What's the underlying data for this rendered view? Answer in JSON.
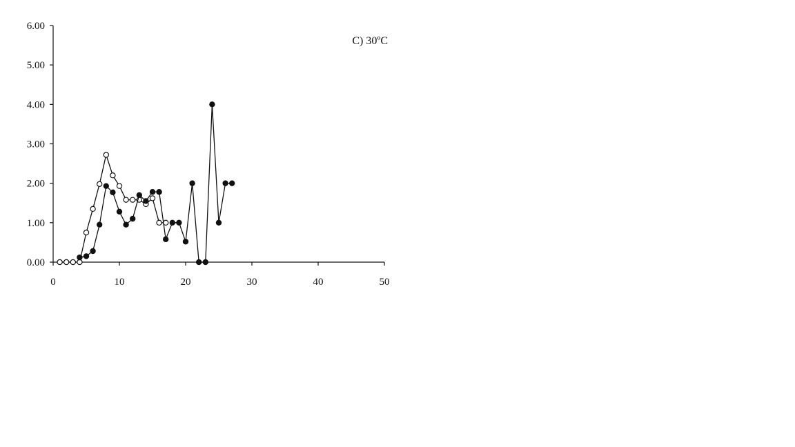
{
  "chart_data": {
    "type": "line",
    "title": "",
    "annotation": "C) 30ºC",
    "xlabel": "",
    "ylabel": "",
    "xlim": [
      0,
      50
    ],
    "ylim": [
      0,
      6
    ],
    "x_ticks": [
      0,
      10,
      20,
      30,
      40,
      50
    ],
    "x_tick_labels": [
      "0",
      "10",
      "20",
      "30",
      "40",
      "50"
    ],
    "y_ticks": [
      0,
      1,
      2,
      3,
      4,
      5,
      6
    ],
    "y_tick_labels": [
      "0.00",
      "1.00",
      "2.00",
      "3.00",
      "4.00",
      "5.00",
      "6.00"
    ],
    "grid": false,
    "legend": "none",
    "series": [
      {
        "marker": "open-circle",
        "color": "#111111",
        "x": [
          1,
          2,
          3,
          4,
          5,
          6,
          7,
          8,
          9,
          10,
          11,
          12,
          13,
          14,
          15,
          16,
          17
        ],
        "y": [
          0.0,
          0.0,
          0.0,
          0.0,
          0.75,
          1.35,
          1.98,
          2.72,
          2.2,
          1.93,
          1.58,
          1.58,
          1.58,
          1.47,
          1.62,
          1.0,
          1.0
        ]
      },
      {
        "marker": "filled-circle",
        "color": "#111111",
        "x": [
          4,
          5,
          6,
          7,
          8,
          9,
          10,
          11,
          12,
          13,
          14,
          15,
          16,
          17,
          18,
          19,
          20,
          21,
          22,
          23,
          24,
          25,
          26,
          27
        ],
        "y": [
          0.12,
          0.15,
          0.28,
          0.95,
          1.93,
          1.77,
          1.28,
          0.95,
          1.1,
          1.7,
          1.55,
          1.78,
          1.78,
          0.58,
          1.0,
          1.0,
          0.52,
          2.0,
          0.0,
          0.0,
          4.0,
          1.0,
          2.0,
          2.0
        ]
      }
    ]
  }
}
